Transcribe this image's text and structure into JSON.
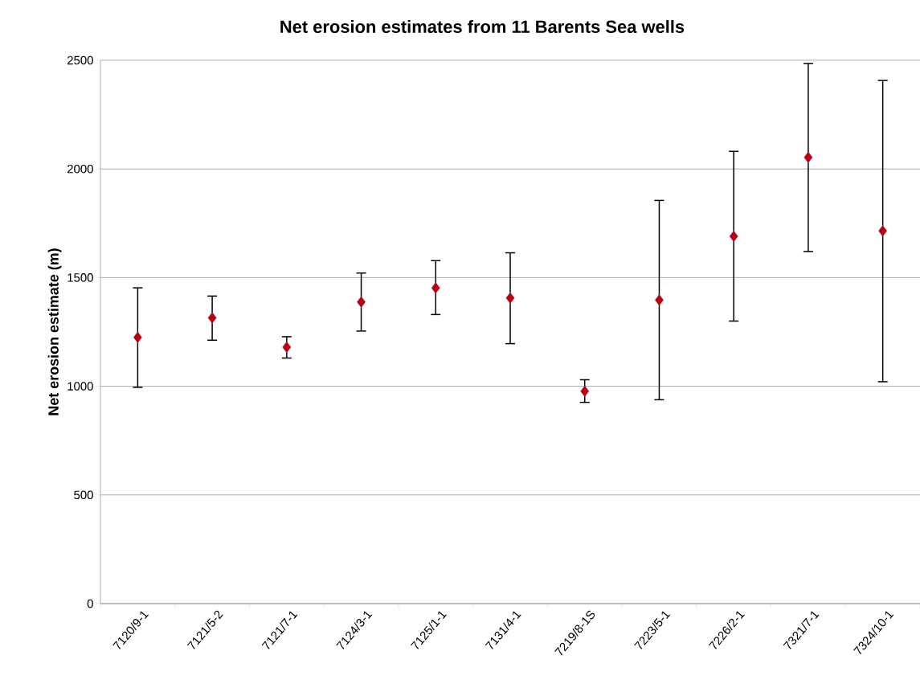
{
  "chart_data": {
    "type": "scatter",
    "title": "Net erosion estimates from 11 Barents Sea wells",
    "ylabel": "Net erosion estimate (m)",
    "categories": [
      "7120/9-1",
      "7121/5-2",
      "7121/7-1",
      "7124/3-1",
      "7125/1-1",
      "7131/4-1",
      "7219/8-1S",
      "7223/5-1",
      "7226/2-1",
      "7321/7-1",
      "7324/10-1"
    ],
    "values": [
      1225,
      1315,
      1180,
      1388,
      1452,
      1406,
      977,
      1397,
      1690,
      2053,
      1715
    ],
    "errors": [
      [
        995,
        1453
      ],
      [
        1212,
        1415
      ],
      [
        1130,
        1228
      ],
      [
        1254,
        1521
      ],
      [
        1330,
        1578
      ],
      [
        1196,
        1614
      ],
      [
        926,
        1030
      ],
      [
        938,
        1855
      ],
      [
        1300,
        2081
      ],
      [
        1620,
        2485
      ],
      [
        1021,
        2407
      ]
    ],
    "color": "#c00000",
    "marker": "diamond",
    "grid": "y",
    "ylim": [
      0,
      2500
    ],
    "yticks": [
      0,
      500,
      1000,
      1500,
      2000,
      2500
    ]
  }
}
